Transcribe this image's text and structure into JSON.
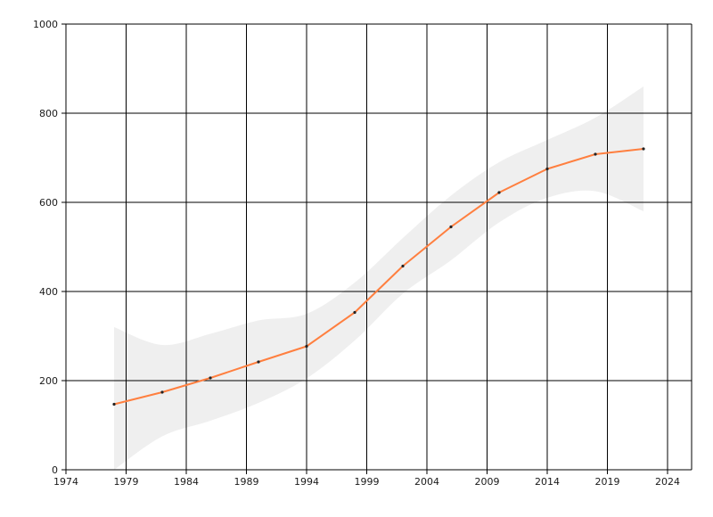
{
  "chart_data": {
    "type": "line",
    "title": "",
    "xlabel": "",
    "ylabel": "",
    "xlim": [
      1974,
      2026
    ],
    "ylim": [
      0,
      1000
    ],
    "x_ticks": [
      "1974",
      "1979",
      "1984",
      "1989",
      "1994",
      "1999",
      "2004",
      "2009",
      "2014",
      "2019",
      "2024"
    ],
    "y_ticks": [
      "0",
      "200",
      "400",
      "600",
      "800",
      "1000"
    ],
    "grid": true,
    "legend": "none",
    "series": [
      {
        "color": "#ff7f3f",
        "x": [
          1978,
          1982,
          1986,
          1990,
          1994,
          1998,
          2002,
          2006,
          2010,
          2014,
          2018,
          2022
        ],
        "values": [
          147,
          174,
          206,
          242,
          277,
          353,
          457,
          545,
          622,
          675,
          708,
          720
        ]
      }
    ],
    "confidence_band": {
      "color": "#efefef",
      "x": [
        1978,
        1982,
        1986,
        1990,
        1994,
        1998,
        2002,
        2006,
        2010,
        2014,
        2018,
        2022
      ],
      "upper": [
        320,
        280,
        305,
        335,
        350,
        420,
        520,
        615,
        690,
        740,
        790,
        860
      ],
      "lower": [
        0,
        75,
        110,
        150,
        205,
        290,
        395,
        470,
        555,
        610,
        625,
        580
      ]
    }
  }
}
